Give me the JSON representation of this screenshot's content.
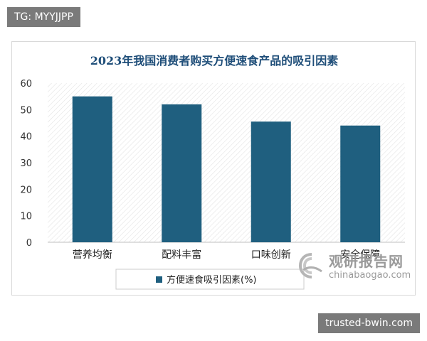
{
  "tags": {
    "top": "TG: MYYJJPP",
    "bottom": "trusted-bwin.com"
  },
  "watermark": {
    "title": "观研报告网",
    "subtitle": "chinabaogao.com"
  },
  "colors": {
    "bar": "#1f5f7f",
    "title": "#1f4e79",
    "tag_bg": "#7a7a7a"
  },
  "chart_data": {
    "type": "bar",
    "title": "2023年我国消费者购买方便速食产品的吸引因素",
    "xlabel": "",
    "ylabel": "",
    "categories": [
      "营养均衡",
      "配料丰富",
      "口味创新",
      "安全保障"
    ],
    "series": [
      {
        "name": "方便速食吸引因素(%)",
        "values": [
          55,
          52,
          45.5,
          44
        ]
      }
    ],
    "ylim": [
      0,
      60
    ],
    "yticks": [
      0,
      10,
      20,
      30,
      40,
      50,
      60
    ],
    "grid": false,
    "legend_position": "bottom"
  }
}
